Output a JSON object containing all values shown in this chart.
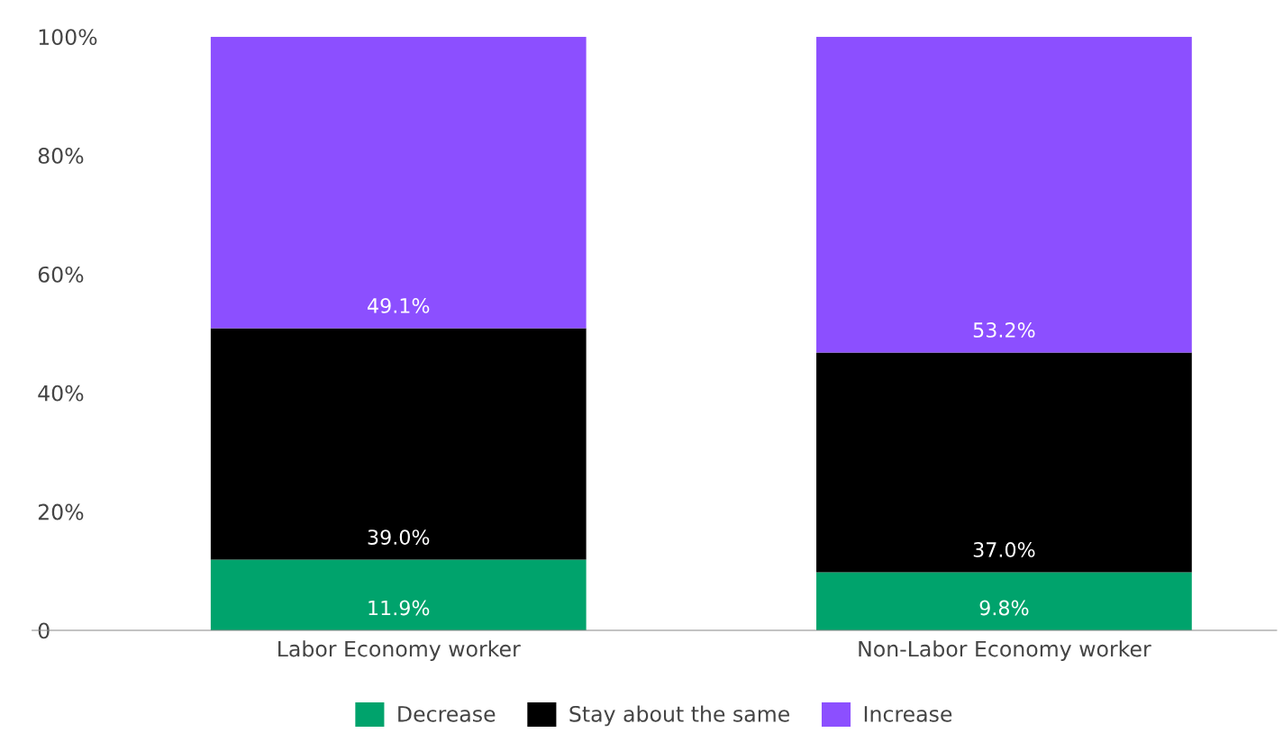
{
  "chart_data": {
    "type": "bar",
    "stacked": true,
    "categories": [
      "Labor Economy worker",
      "Non-Labor Economy worker"
    ],
    "series": [
      {
        "name": "Decrease",
        "color": "#00a36c",
        "values": [
          11.9,
          9.8
        ],
        "value_labels": [
          "11.9%",
          "9.8%"
        ]
      },
      {
        "name": "Stay about the same",
        "color": "#000000",
        "values": [
          39.0,
          37.0
        ],
        "value_labels": [
          "39.0%",
          "37.0%"
        ]
      },
      {
        "name": "Increase",
        "color": "#8c4fff",
        "values": [
          49.1,
          53.2
        ],
        "value_labels": [
          "49.1%",
          "53.2%"
        ]
      }
    ],
    "ylim": [
      0,
      100
    ],
    "yticks": [
      {
        "value": 0,
        "label": "0"
      },
      {
        "value": 20,
        "label": "20%"
      },
      {
        "value": 40,
        "label": "40%"
      },
      {
        "value": 60,
        "label": "60%"
      },
      {
        "value": 80,
        "label": "80%"
      },
      {
        "value": 100,
        "label": "100%"
      }
    ],
    "grid": false,
    "legend": "bottom"
  }
}
